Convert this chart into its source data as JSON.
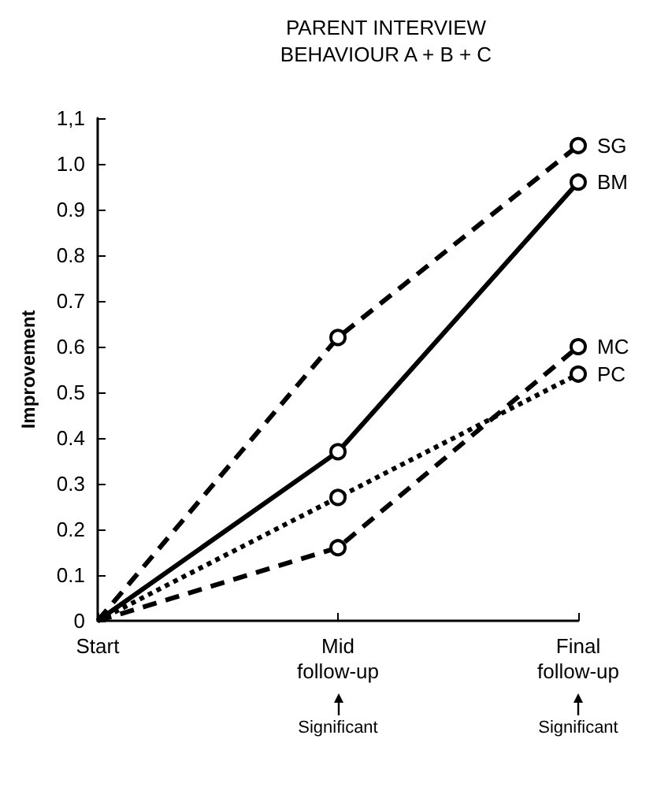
{
  "chart_data": {
    "type": "line",
    "title": "PARENT INTERVIEW",
    "subtitle": "BEHAVIOUR A + B + C",
    "ylabel": "Improvement",
    "categories": [
      "Start",
      "Mid\nfollow-up",
      "Final\nfollow-up"
    ],
    "series": [
      {
        "name": "SG",
        "color": "#000000",
        "values": [
          0,
          0.62,
          1.04
        ],
        "line_style": "dashed"
      },
      {
        "name": "BM",
        "color": "#000000",
        "values": [
          0,
          0.37,
          0.96
        ],
        "line_style": "solid"
      },
      {
        "name": "MC",
        "color": "#000000",
        "values": [
          0,
          0.16,
          0.6
        ],
        "line_style": "dashed"
      },
      {
        "name": "PC",
        "color": "#000000",
        "values": [
          0,
          0.27,
          0.54
        ],
        "line_style": "dotted"
      }
    ],
    "ylim": [
      0,
      1.1
    ],
    "yticks": [
      0,
      0.1,
      0.2,
      0.3,
      0.4,
      0.5,
      0.6,
      0.7,
      0.8,
      0.9,
      {
        "value": 1.0,
        "label": "1.0"
      },
      {
        "value": 1.1,
        "label": "1,1"
      }
    ],
    "annotations": [
      "Significant",
      "Significant"
    ],
    "marker": "circle",
    "grid": false,
    "legend": false
  }
}
